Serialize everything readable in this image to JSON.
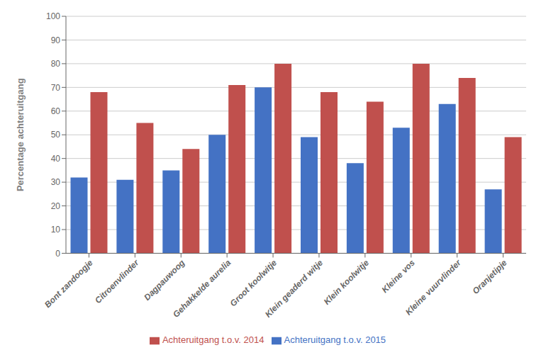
{
  "chart_data": {
    "type": "bar",
    "categories": [
      "Bont zandoogje",
      "Citroenvlinder",
      "Dagpauwoog",
      "Gehakkelde aurelia",
      "Groot koolwitje",
      "Klein geaderd witje",
      "Klein koolwitje",
      "Kleine vos",
      "Kleine vuurvlinder",
      "Oranjetipje"
    ],
    "series": [
      {
        "name": "Achteruitgang t.o.v. 2015",
        "color": "#4472C4",
        "values": [
          32,
          31,
          35,
          50,
          70,
          49,
          38,
          53,
          63,
          27
        ]
      },
      {
        "name": "Achteruitgang t.o.v. 2014",
        "color": "#C0504D",
        "values": [
          68,
          55,
          44,
          71,
          80,
          68,
          64,
          80,
          74,
          49
        ]
      }
    ],
    "ylabel": "Percentage achteruitgang",
    "ylim": [
      0,
      100
    ],
    "yticks": [
      0,
      10,
      20,
      30,
      40,
      50,
      60,
      70,
      80,
      90,
      100
    ],
    "grid": true,
    "legend": "bottom"
  }
}
